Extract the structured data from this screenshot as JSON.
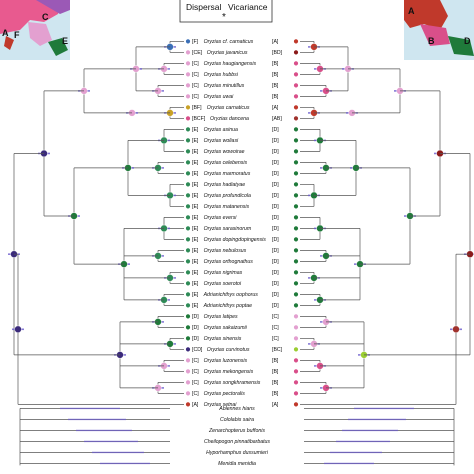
{
  "legend": {
    "dispersal": "Dispersal",
    "vicariance": "Vicariance",
    "marker": "*"
  },
  "colors": {
    "A": "#c0392b",
    "B": "#d94f8a",
    "C": "#e3a0d0",
    "D": "#1f7a3a",
    "E": "#2e8b57",
    "F": "#3b6fb6",
    "BF": "#c9a227",
    "BD": "#8b1a1a",
    "CD": "#3a2a7a",
    "BC": "#9acd32",
    "AB": "#a0322d"
  },
  "map_left": {
    "regions": [
      "A",
      "F",
      "C",
      "E"
    ]
  },
  "map_right": {
    "regions": [
      "A",
      "B",
      "D"
    ]
  },
  "taxa": [
    {
      "left": "[F]",
      "name": "Oryzias cf. carnaticus",
      "right": "[A]"
    },
    {
      "left": "[CE]",
      "name": "Oryzias javanicus",
      "right": "[BD]"
    },
    {
      "left": "[C]",
      "name": "Oryzias haugiangensis",
      "right": "[B]"
    },
    {
      "left": "[C]",
      "name": "Oryzias hubbsi",
      "right": "[B]"
    },
    {
      "left": "[C]",
      "name": "Oryzias minutillus",
      "right": "[B]"
    },
    {
      "left": "[C]",
      "name": "Oryzias uwai",
      "right": "[B]"
    },
    {
      "left": "[BF]",
      "name": "Oryzias carnaticus",
      "right": "[A]"
    },
    {
      "left": "[BCF]",
      "name": "Oryzias dancena",
      "right": "[AB]"
    },
    {
      "left": "[E]",
      "name": "Oryzias asinua",
      "right": "[D]"
    },
    {
      "left": "[E]",
      "name": "Oryzias woliasi",
      "right": "[D]"
    },
    {
      "left": "[E]",
      "name": "Oryzias wowoirae",
      "right": "[D]"
    },
    {
      "left": "[E]",
      "name": "Oryzias celebensis",
      "right": "[D]"
    },
    {
      "left": "[E]",
      "name": "Oryzias marmoratus",
      "right": "[D]"
    },
    {
      "left": "[E]",
      "name": "Oryzias hadiatyae",
      "right": "[D]"
    },
    {
      "left": "[E]",
      "name": "Oryzias profundicola",
      "right": "[D]"
    },
    {
      "left": "[E]",
      "name": "Oryzias matanensis",
      "right": "[D]"
    },
    {
      "left": "[E]",
      "name": "Oryzias eversi",
      "right": "[D]"
    },
    {
      "left": "[E]",
      "name": "Oryzias sarasinorum",
      "right": "[D]"
    },
    {
      "left": "[E]",
      "name": "Oryzias dopingdopingensis",
      "right": "[D]"
    },
    {
      "left": "[E]",
      "name": "Oryzias nebulosus",
      "right": "[D]"
    },
    {
      "left": "[E]",
      "name": "Oryzias orthognathus",
      "right": "[D]"
    },
    {
      "left": "[E]",
      "name": "Oryzias nigrimas",
      "right": "[D]"
    },
    {
      "left": "[E]",
      "name": "Oryzias soerotoi",
      "right": "[D]"
    },
    {
      "left": "[E]",
      "name": "Adrianichthys oophorus",
      "right": "[D]"
    },
    {
      "left": "[E]",
      "name": "Adrianichthys poptae",
      "right": "[D]"
    },
    {
      "left": "[D]",
      "name": "Oryzias latipes",
      "right": "[C]"
    },
    {
      "left": "[D]",
      "name": "Oryzias sakaizumii",
      "right": "[C]"
    },
    {
      "left": "[D]",
      "name": "Oryzias sinensis",
      "right": "[C]"
    },
    {
      "left": "[CD]",
      "name": "Oryzias curvinotus",
      "right": "[BC]"
    },
    {
      "left": "[C]",
      "name": "Oryzias luzonensis",
      "right": "[B]"
    },
    {
      "left": "[C]",
      "name": "Oryzias mekongensis",
      "right": "[B]"
    },
    {
      "left": "[C]",
      "name": "Oryzias songkhramensis",
      "right": "[B]"
    },
    {
      "left": "[C]",
      "name": "Oryzias pectoralis",
      "right": "[B]"
    },
    {
      "left": "[A]",
      "name": "Oryzias setnai",
      "right": "[A]"
    }
  ],
  "outgroups": [
    "Ablennes hians",
    "Cololabis saira",
    "Zenarchopterus buffonis",
    "Cheilopogon pinnatibarbatus",
    "Hyporhamphus dussumieri",
    "Menidia menidia"
  ]
}
